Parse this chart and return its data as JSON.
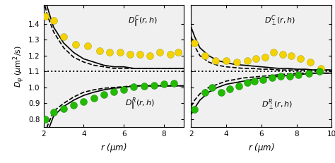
{
  "xlim1": [
    2,
    9
  ],
  "xlim2": [
    2,
    10
  ],
  "ylim": [
    0.75,
    1.52
  ],
  "yticks": [
    0.8,
    0.9,
    1.0,
    1.1,
    1.2,
    1.3,
    1.4
  ],
  "ylabel": "$D_{\\psi}$ ($\\mu$m$^2$/s)",
  "xlabel": "$r$ ($\\mu$m)",
  "D0": 1.1,
  "bg_color": "#f0f0f0",
  "left_yellow_x": [
    2.1,
    2.5,
    3.0,
    3.6,
    4.2,
    4.8,
    5.3,
    5.8,
    6.3,
    6.8,
    7.3,
    7.8,
    8.3,
    8.7
  ],
  "left_yellow_y": [
    1.45,
    1.42,
    1.32,
    1.27,
    1.26,
    1.23,
    1.22,
    1.22,
    1.21,
    1.21,
    1.2,
    1.22,
    1.21,
    1.22
  ],
  "left_green_x": [
    2.1,
    2.5,
    3.0,
    3.5,
    4.0,
    4.5,
    5.0,
    5.5,
    6.0,
    6.5,
    7.0,
    7.5,
    8.0,
    8.5
  ],
  "left_green_y": [
    0.8,
    0.845,
    0.865,
    0.89,
    0.91,
    0.935,
    0.955,
    0.975,
    0.985,
    1.005,
    1.01,
    1.015,
    1.02,
    1.025
  ],
  "right_yellow_x": [
    2.2,
    2.8,
    3.4,
    4.0,
    4.6,
    5.2,
    5.7,
    6.2,
    6.7,
    7.2,
    7.7,
    8.2,
    8.8,
    9.4
  ],
  "right_yellow_y": [
    1.28,
    1.2,
    1.17,
    1.17,
    1.16,
    1.17,
    1.18,
    1.19,
    1.22,
    1.21,
    1.2,
    1.18,
    1.16,
    1.12
  ],
  "right_green_x": [
    2.2,
    2.8,
    3.2,
    3.7,
    4.2,
    4.7,
    5.2,
    5.6,
    6.1,
    6.6,
    7.1,
    7.6,
    8.1,
    8.7,
    9.3
  ],
  "right_green_y": [
    0.86,
    0.97,
    1.0,
    0.97,
    0.99,
    1.01,
    1.03,
    1.04,
    1.05,
    1.06,
    1.07,
    1.07,
    1.08,
    1.09,
    1.1
  ],
  "yellow_color": "#f5d300",
  "green_color": "#22bb00",
  "marker_size": 52,
  "line_color": "black",
  "line_width": 1.2,
  "label_C_parallel": "$D_{\\|}^{C}(r,h)$",
  "label_R_parallel": "$D_{\\|}^{R}(r,h)$",
  "label_C_perp": "$D_{\\perp}^{C}(r,h)$",
  "label_R_perp": "$D_{\\perp}^{R}(r,h)$",
  "left_solid_yellow_x": [
    2.0,
    2.2,
    2.5,
    3.0,
    3.5,
    4.0,
    4.5,
    5.0,
    5.5,
    6.0,
    6.5,
    7.0,
    7.5,
    8.0,
    8.5,
    9.0
  ],
  "left_solid_yellow_y": [
    1.6,
    1.5,
    1.38,
    1.28,
    1.22,
    1.18,
    1.16,
    1.14,
    1.13,
    1.13,
    1.12,
    1.12,
    1.12,
    1.12,
    1.12,
    1.12
  ],
  "left_dashed_yellow_x": [
    2.0,
    2.2,
    2.5,
    3.0,
    3.5,
    4.0,
    4.5,
    5.0,
    5.5,
    6.0,
    6.5,
    7.0,
    7.5,
    8.0,
    8.5,
    9.0
  ],
  "left_dashed_yellow_y": [
    1.55,
    1.45,
    1.35,
    1.25,
    1.19,
    1.16,
    1.14,
    1.13,
    1.12,
    1.12,
    1.12,
    1.12,
    1.12,
    1.12,
    1.12,
    1.12
  ],
  "left_solid_green_x": [
    2.0,
    2.2,
    2.5,
    3.0,
    3.5,
    4.0,
    4.5,
    5.0,
    5.5,
    6.0,
    6.5,
    7.0,
    7.5,
    8.0,
    8.5,
    9.0
  ],
  "left_solid_green_y": [
    0.62,
    0.72,
    0.82,
    0.88,
    0.92,
    0.95,
    0.97,
    0.985,
    0.995,
    1.0,
    1.01,
    1.01,
    1.01,
    1.01,
    1.01,
    1.01
  ],
  "left_dashed_green_x": [
    2.0,
    2.2,
    2.5,
    3.0,
    3.5,
    4.0,
    4.5,
    5.0,
    5.5,
    6.0,
    6.5,
    7.0,
    7.5,
    8.0,
    8.5,
    9.0
  ],
  "left_dashed_green_y": [
    0.67,
    0.76,
    0.85,
    0.9,
    0.94,
    0.97,
    0.985,
    0.995,
    1.0,
    1.005,
    1.01,
    1.01,
    1.01,
    1.01,
    1.01,
    1.01
  ],
  "right_solid_yellow_x": [
    2.0,
    2.2,
    2.5,
    3.0,
    3.5,
    4.0,
    4.5,
    5.0,
    5.5,
    6.0,
    6.5,
    7.0,
    7.5,
    8.0,
    8.5,
    9.0,
    9.5,
    10.0
  ],
  "right_solid_yellow_y": [
    1.38,
    1.32,
    1.25,
    1.2,
    1.17,
    1.155,
    1.145,
    1.14,
    1.135,
    1.13,
    1.125,
    1.12,
    1.12,
    1.115,
    1.115,
    1.11,
    1.11,
    1.11
  ],
  "right_dashed_yellow_x": [
    2.0,
    2.2,
    2.5,
    3.0,
    3.5,
    4.0,
    4.5,
    5.0,
    5.5,
    6.0,
    6.5,
    7.0,
    7.5,
    8.0,
    8.5,
    9.0,
    9.5,
    10.0
  ],
  "right_dashed_yellow_y": [
    1.32,
    1.26,
    1.2,
    1.16,
    1.14,
    1.13,
    1.125,
    1.12,
    1.12,
    1.115,
    1.115,
    1.11,
    1.11,
    1.11,
    1.11,
    1.11,
    1.11,
    1.11
  ],
  "right_solid_green_x": [
    2.0,
    2.2,
    2.5,
    3.0,
    3.5,
    4.0,
    4.5,
    5.0,
    5.5,
    6.0,
    6.5,
    7.0,
    7.5,
    8.0,
    8.5,
    9.0,
    9.5,
    10.0
  ],
  "right_solid_green_y": [
    0.83,
    0.87,
    0.92,
    0.97,
    1.0,
    1.02,
    1.03,
    1.04,
    1.05,
    1.06,
    1.065,
    1.07,
    1.075,
    1.08,
    1.085,
    1.09,
    1.09,
    1.09
  ],
  "right_dashed_green_x": [
    2.0,
    2.2,
    2.5,
    3.0,
    3.5,
    4.0,
    4.5,
    5.0,
    5.5,
    6.0,
    6.5,
    7.0,
    7.5,
    8.0,
    8.5,
    9.0,
    9.5,
    10.0
  ],
  "right_dashed_green_y": [
    0.88,
    0.92,
    0.96,
    1.0,
    1.02,
    1.04,
    1.05,
    1.06,
    1.065,
    1.07,
    1.075,
    1.08,
    1.085,
    1.09,
    1.09,
    1.09,
    1.09,
    1.09
  ]
}
